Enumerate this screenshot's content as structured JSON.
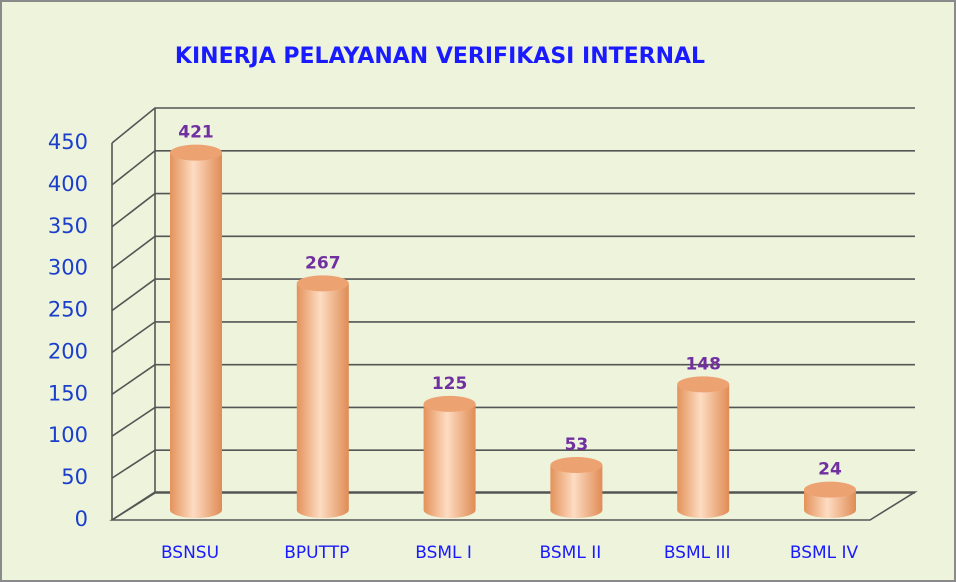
{
  "chart_data": {
    "type": "bar",
    "title": "KINERJA PELAYANAN  VERIFIKASI INTERNAL",
    "categories": [
      "BSNSU",
      "BPUTTP",
      "BSML I",
      "BSML II",
      "BSML III",
      "BSML IV"
    ],
    "values": [
      421,
      267,
      125,
      53,
      148,
      24
    ],
    "color": "#f4b183",
    "ylim": [
      0,
      450
    ],
    "yticks": [
      0,
      50,
      100,
      150,
      200,
      250,
      300,
      350,
      400,
      450
    ],
    "grid": true
  }
}
